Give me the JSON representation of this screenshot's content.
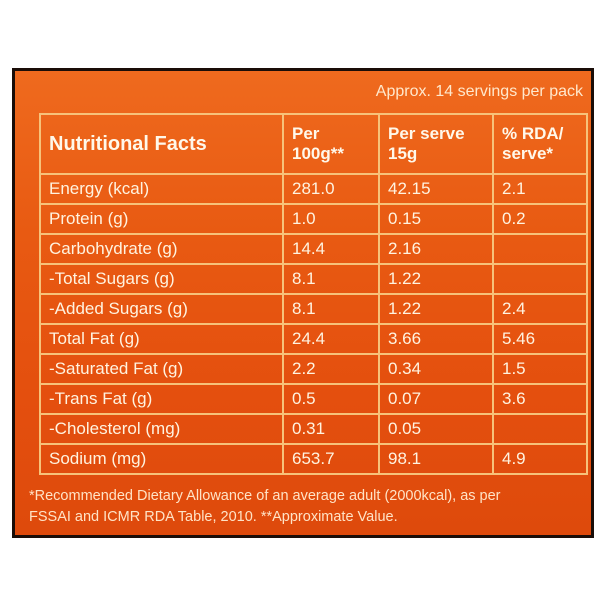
{
  "servings_text": "Approx. 14 servings per pack",
  "header": {
    "col1": "Nutritional Facts",
    "col2": "Per 100g**",
    "col3": "Per serve 15g",
    "col4": "% RDA/ serve*"
  },
  "rows": [
    {
      "name": "Energy (kcal)",
      "per100": "281.0",
      "perServe": "42.15",
      "rda": "2.1"
    },
    {
      "name": "Protein (g)",
      "per100": "1.0",
      "perServe": "0.15",
      "rda": "0.2"
    },
    {
      "name": "Carbohydrate (g)",
      "per100": "14.4",
      "perServe": "2.16",
      "rda": ""
    },
    {
      "name": "-Total Sugars (g)",
      "per100": "8.1",
      "perServe": "1.22",
      "rda": ""
    },
    {
      "name": "-Added Sugars (g)",
      "per100": "8.1",
      "perServe": "1.22",
      "rda": "2.4"
    },
    {
      "name": "Total Fat (g)",
      "per100": "24.4",
      "perServe": "3.66",
      "rda": "5.46"
    },
    {
      "name": "-Saturated Fat (g)",
      "per100": "2.2",
      "perServe": "0.34",
      "rda": "1.5"
    },
    {
      "name": "-Trans Fat (g)",
      "per100": "0.5",
      "perServe": "0.07",
      "rda": "3.6"
    },
    {
      "name": "-Cholesterol (mg)",
      "per100": "0.31",
      "perServe": "0.05",
      "rda": ""
    },
    {
      "name": "Sodium (mg)",
      "per100": "653.7",
      "perServe": "98.1",
      "rda": "4.9"
    }
  ],
  "footnote_line1": "*Recommended Dietary Allowance of an average adult (2000kcal), as per",
  "footnote_line2": "FSSAI and ICMR RDA Table, 2010. **Approximate Value.",
  "colors": {
    "panel": "#e85a12",
    "border": "#f7c27a",
    "text": "#fff3e0"
  }
}
